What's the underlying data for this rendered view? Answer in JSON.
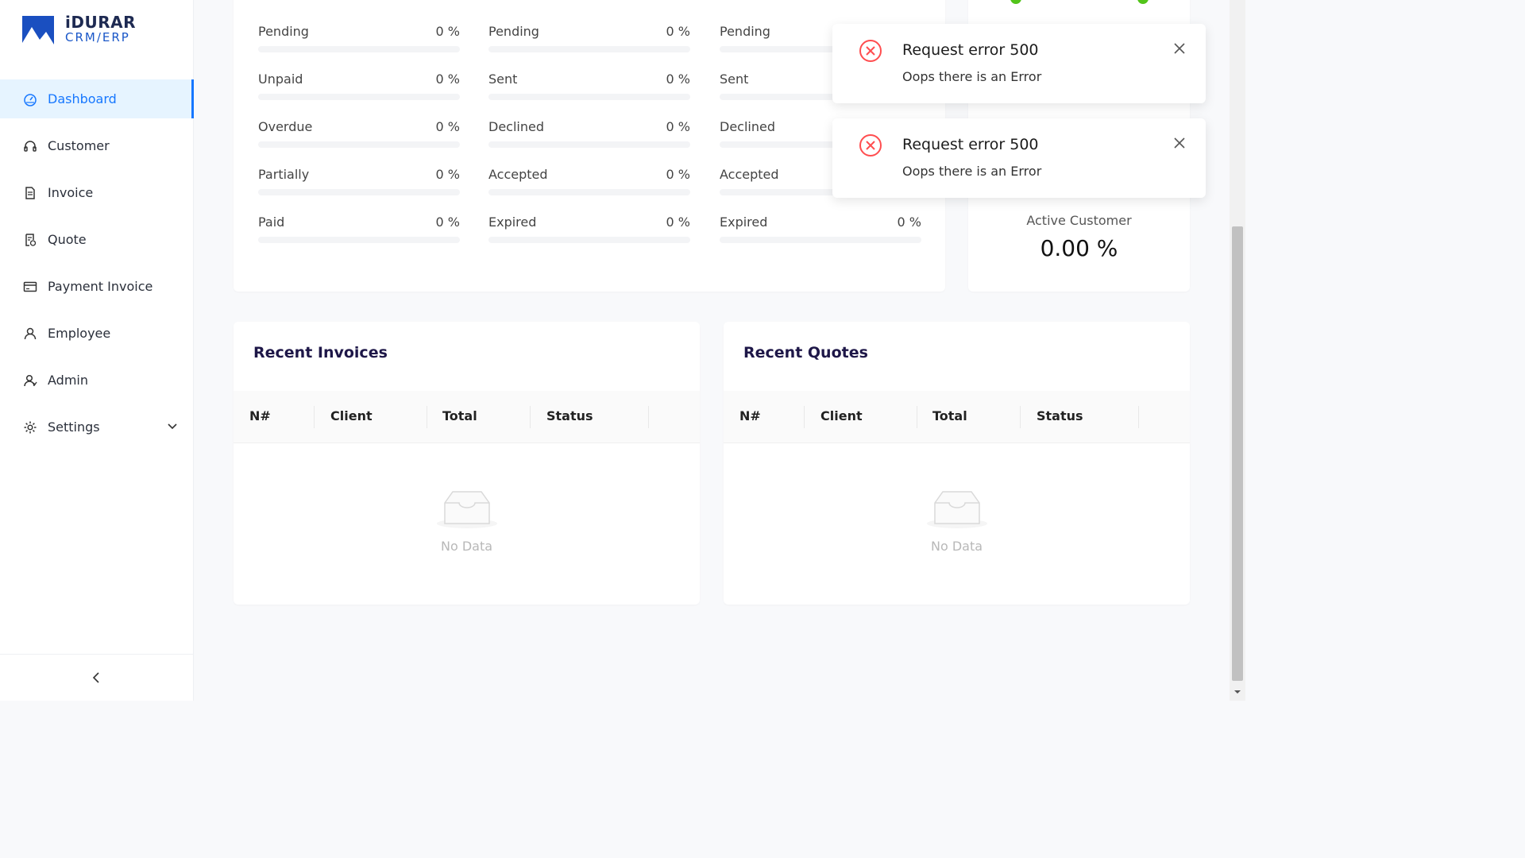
{
  "brand": {
    "name": "iDURAR",
    "subtitle": "CRM/ERP"
  },
  "colors": {
    "accent": "#1677ff",
    "active_bg": "#e6f4ff",
    "error": "#ff4d4f",
    "gauge": "#52c41a",
    "title": "#1e1748"
  },
  "sidebar": {
    "items": [
      {
        "label": "Dashboard",
        "icon": "dashboard-icon",
        "active": true
      },
      {
        "label": "Customer",
        "icon": "headset-icon"
      },
      {
        "label": "Invoice",
        "icon": "file-text-icon"
      },
      {
        "label": "Quote",
        "icon": "file-sync-icon"
      },
      {
        "label": "Payment Invoice",
        "icon": "credit-card-icon"
      },
      {
        "label": "Employee",
        "icon": "user-icon"
      },
      {
        "label": "Admin",
        "icon": "team-icon"
      },
      {
        "label": "Settings",
        "icon": "gear-icon",
        "expandable": true
      }
    ],
    "collapse_icon": "chevron-left-icon"
  },
  "status_columns": [
    {
      "rows": [
        {
          "label": "Pending",
          "percent": "0 %",
          "value": 0
        },
        {
          "label": "Unpaid",
          "percent": "0 %",
          "value": 0
        },
        {
          "label": "Overdue",
          "percent": "0 %",
          "value": 0
        },
        {
          "label": "Partially",
          "percent": "0 %",
          "value": 0
        },
        {
          "label": "Paid",
          "percent": "0 %",
          "value": 0
        }
      ]
    },
    {
      "rows": [
        {
          "label": "Pending",
          "percent": "0 %",
          "value": 0
        },
        {
          "label": "Sent",
          "percent": "0 %",
          "value": 0
        },
        {
          "label": "Declined",
          "percent": "0 %",
          "value": 0
        },
        {
          "label": "Accepted",
          "percent": "0 %",
          "value": 0
        },
        {
          "label": "Expired",
          "percent": "0 %",
          "value": 0
        }
      ]
    },
    {
      "rows": [
        {
          "label": "Pending",
          "percent": "",
          "value": 0
        },
        {
          "label": "Sent",
          "percent": "",
          "value": 0
        },
        {
          "label": "Declined",
          "percent": "",
          "value": 0
        },
        {
          "label": "Accepted",
          "percent": "",
          "value": 0
        },
        {
          "label": "Expired",
          "percent": "0 %",
          "value": 0
        }
      ]
    }
  ],
  "customer_card": {
    "label": "Active Customer",
    "value": "0.00 %"
  },
  "recent_invoices": {
    "title": "Recent Invoices",
    "columns": [
      "N#",
      "Client",
      "Total",
      "Status"
    ],
    "empty_text": "No Data"
  },
  "recent_quotes": {
    "title": "Recent Quotes",
    "columns": [
      "N#",
      "Client",
      "Total",
      "Status"
    ],
    "empty_text": "No Data"
  },
  "notifications": [
    {
      "title": "Request error 500",
      "message": "Oops there is an Error",
      "icon": "error-circle-icon"
    },
    {
      "title": "Request error 500",
      "message": "Oops there is an Error",
      "icon": "error-circle-icon"
    }
  ]
}
